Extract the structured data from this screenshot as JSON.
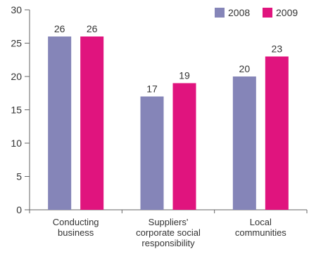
{
  "chart_data": {
    "type": "bar",
    "categories": [
      [
        "Conducting",
        "business"
      ],
      [
        "Suppliers'",
        "corporate social",
        "responsibility"
      ],
      [
        "Local",
        "communities"
      ]
    ],
    "series": [
      {
        "name": "2008",
        "values": [
          26,
          17,
          20
        ],
        "color": "#8585b8"
      },
      {
        "name": "2009",
        "values": [
          26,
          19,
          23
        ],
        "color": "#e0147e"
      }
    ],
    "ylim": [
      0,
      30
    ],
    "yticks": [
      0,
      5,
      10,
      15,
      20,
      25,
      30
    ],
    "data_labels": true,
    "grid": false,
    "legend_position": "top-right",
    "title": "",
    "xlabel": "",
    "ylabel": ""
  }
}
